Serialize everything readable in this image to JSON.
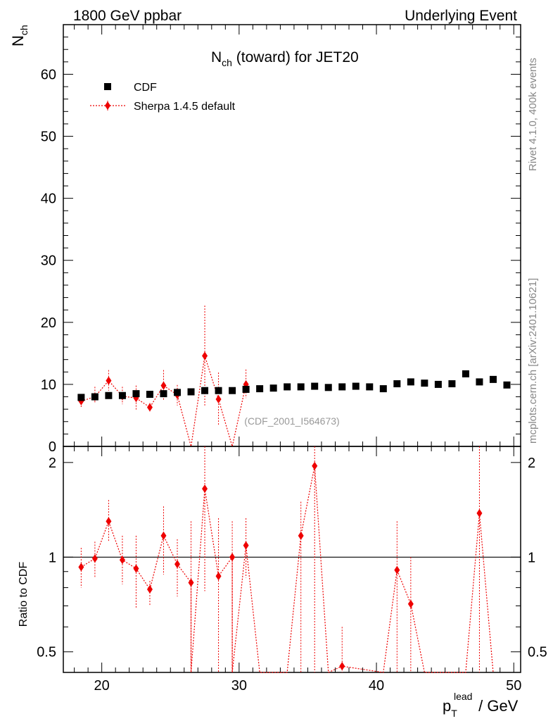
{
  "header": {
    "left": "1800 GeV ppbar",
    "right": "Underlying Event"
  },
  "side": {
    "rivet": "Rivet 4.1.0,  400k events",
    "mcplots": "mcplots.cern.ch [arXiv:2401.10621]"
  },
  "chart_data": {
    "type": "scatter",
    "title_main": "N",
    "title_sub": "ch",
    "title_rest": " (toward) for JET20",
    "ylabel_main": "N",
    "ylabel_sub": "ch",
    "xlabel_p": "p",
    "xlabel_sub": "T",
    "xlabel_sup": "lead",
    "xlabel_rest": " / GeV",
    "ratio_ylabel": "Ratio to CDF",
    "analysis_id": "(CDF_2001_I564673)",
    "xlim": [
      17.2,
      50.5
    ],
    "ylim": [
      0,
      68
    ],
    "ratio_ylim": [
      0.43,
      2.25
    ],
    "x_ticks": [
      20,
      30,
      40,
      50
    ],
    "x_tick_labels": [
      "20",
      "30",
      "40",
      "50"
    ],
    "y_ticks": [
      0,
      10,
      20,
      30,
      40,
      50,
      60
    ],
    "y_tick_labels": [
      "0",
      "10",
      "20",
      "30",
      "40",
      "50",
      "60"
    ],
    "ratio_ticks": [
      0.5,
      1,
      2
    ],
    "ratio_tick_labels": [
      "0.5",
      "1",
      "2"
    ],
    "legend": [
      {
        "name": "CDF",
        "marker": "square",
        "color": "#000000"
      },
      {
        "name": "Sherpa 1.4.5 default",
        "marker": "diamond",
        "color": "#ee0000"
      }
    ],
    "series": [
      {
        "name": "CDF",
        "color": "#000000",
        "x": [
          18.5,
          19.5,
          20.5,
          21.5,
          22.5,
          23.5,
          24.5,
          25.5,
          26.5,
          27.5,
          28.5,
          29.5,
          30.5,
          31.5,
          32.5,
          33.5,
          34.5,
          35.5,
          36.5,
          37.5,
          38.5,
          39.5,
          40.5,
          41.5,
          42.5,
          43.5,
          44.5,
          45.5,
          46.5,
          47.5,
          48.5,
          49.5
        ],
        "y": [
          7.9,
          8.0,
          8.2,
          8.2,
          8.5,
          8.4,
          8.5,
          8.7,
          8.8,
          9.0,
          9.0,
          9.0,
          9.2,
          9.3,
          9.4,
          9.6,
          9.6,
          9.7,
          9.5,
          9.6,
          9.7,
          9.6,
          9.3,
          10.1,
          10.4,
          10.2,
          10.0,
          10.1,
          11.7,
          10.4,
          10.8,
          9.9
        ]
      },
      {
        "name": "Sherpa 1.4.5 default",
        "color": "#ee0000",
        "x": [
          18.5,
          19.5,
          20.5,
          21.5,
          22.5,
          23.5,
          24.5,
          25.5,
          26.5,
          27.5,
          28.5,
          29.5,
          30.5
        ],
        "y": [
          7.3,
          8.0,
          10.6,
          8.1,
          7.8,
          6.3,
          9.8,
          8.3,
          0.0,
          14.6,
          7.6,
          0.0,
          10.0
        ],
        "y_low": [
          6.2,
          7.0,
          9.0,
          6.8,
          5.8,
          5.6,
          7.4,
          6.6,
          0.0,
          6.6,
          3.3,
          0.0,
          7.8
        ],
        "y_high": [
          8.4,
          9.6,
          12.3,
          9.6,
          9.8,
          7.0,
          12.3,
          9.9,
          0.0,
          22.7,
          11.9,
          0.0,
          12.4
        ]
      }
    ],
    "ratio": {
      "line_points": [
        {
          "x": 18.5,
          "y": 0.93
        },
        {
          "x": 19.5,
          "y": 0.99
        },
        {
          "x": 20.5,
          "y": 1.3
        },
        {
          "x": 21.5,
          "y": 0.98
        },
        {
          "x": 22.5,
          "y": 0.92
        },
        {
          "x": 23.5,
          "y": 0.79
        },
        {
          "x": 24.5,
          "y": 1.17
        },
        {
          "x": 25.5,
          "y": 0.95
        },
        {
          "x": 26.5,
          "y": 0.83
        },
        {
          "x": 26.5,
          "y": 0.0
        },
        {
          "x": 27.5,
          "y": 1.65
        },
        {
          "x": 28.5,
          "y": 0.87
        },
        {
          "x": 29.5,
          "y": 1.0
        },
        {
          "x": 29.5,
          "y": 0.0
        },
        {
          "x": 30.5,
          "y": 1.09
        },
        {
          "x": 31.5,
          "y": 0.0
        },
        {
          "x": 33.5,
          "y": 0.0
        },
        {
          "x": 34.5,
          "y": 1.17
        },
        {
          "x": 35.5,
          "y": 1.95
        },
        {
          "x": 36.5,
          "y": 0.0
        },
        {
          "x": 37.5,
          "y": 0.45
        },
        {
          "x": 40.5,
          "y": 0.0
        },
        {
          "x": 41.5,
          "y": 0.91
        },
        {
          "x": 42.5,
          "y": 0.71
        },
        {
          "x": 43.5,
          "y": 0.0
        },
        {
          "x": 46.5,
          "y": 0.0
        },
        {
          "x": 47.5,
          "y": 1.38
        },
        {
          "x": 48.5,
          "y": 0.0
        }
      ],
      "markers": [
        {
          "x": 18.5,
          "y": 0.93,
          "lo": 0.8,
          "hi": 1.07
        },
        {
          "x": 19.5,
          "y": 0.99,
          "lo": 0.86,
          "hi": 1.12
        },
        {
          "x": 20.5,
          "y": 1.3,
          "lo": 1.12,
          "hi": 1.52
        },
        {
          "x": 21.5,
          "y": 0.98,
          "lo": 0.82,
          "hi": 1.17
        },
        {
          "x": 22.5,
          "y": 0.92,
          "lo": 0.69,
          "hi": 1.17
        },
        {
          "x": 23.5,
          "y": 0.79,
          "lo": 0.7,
          "hi": 0.84
        },
        {
          "x": 24.5,
          "y": 1.17,
          "lo": 0.88,
          "hi": 1.45
        },
        {
          "x": 25.5,
          "y": 0.95,
          "lo": 0.75,
          "hi": 1.14
        },
        {
          "x": 26.5,
          "y": 0.83,
          "lo": 0.0,
          "hi": 1.3
        },
        {
          "x": 27.5,
          "y": 1.65,
          "lo": 0.78,
          "hi": 2.6
        },
        {
          "x": 28.5,
          "y": 0.87,
          "lo": 0.39,
          "hi": 1.33
        },
        {
          "x": 29.5,
          "y": 1.0,
          "lo": 0.0,
          "hi": 1.3
        },
        {
          "x": 30.5,
          "y": 1.09,
          "lo": 0.86,
          "hi": 1.33
        },
        {
          "x": 34.5,
          "y": 1.17,
          "lo": 0.0,
          "hi": 1.5
        },
        {
          "x": 35.5,
          "y": 1.95,
          "lo": 0.0,
          "hi": 2.6
        },
        {
          "x": 37.5,
          "y": 0.45,
          "lo": 0.0,
          "hi": 0.6
        },
        {
          "x": 41.5,
          "y": 0.91,
          "lo": 0.0,
          "hi": 1.3
        },
        {
          "x": 42.5,
          "y": 0.71,
          "lo": 0.0,
          "hi": 1.0
        },
        {
          "x": 47.5,
          "y": 1.38,
          "lo": 0.0,
          "hi": 2.6
        }
      ]
    }
  }
}
